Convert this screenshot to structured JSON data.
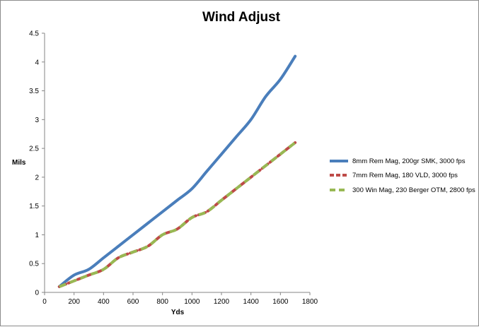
{
  "chart_data": {
    "type": "line",
    "title": "Wind Adjust",
    "xlabel": "Yds",
    "ylabel": "Mils",
    "xlim": [
      0,
      1800
    ],
    "ylim": [
      0,
      4.5
    ],
    "x_ticks": [
      "0",
      "200",
      "400",
      "600",
      "800",
      "1000",
      "1200",
      "1400",
      "1600",
      "1800"
    ],
    "y_ticks": [
      "0",
      "0.5",
      "1",
      "1.5",
      "2",
      "2.5",
      "3",
      "3.5",
      "4",
      "4.5"
    ],
    "grid": false,
    "legend_position": "right",
    "x": [
      100,
      200,
      300,
      400,
      500,
      600,
      700,
      800,
      900,
      1000,
      1100,
      1200,
      1300,
      1400,
      1500,
      1600,
      1700
    ],
    "series": [
      {
        "name": "8mm Rem Mag, 200gr SMK, 3000 fps",
        "color": "#4a7ebb",
        "style": "solid",
        "values": [
          0.1,
          0.3,
          0.4,
          0.6,
          0.8,
          1.0,
          1.2,
          1.4,
          1.6,
          1.8,
          2.1,
          2.4,
          2.7,
          3.0,
          3.4,
          3.7,
          4.1
        ]
      },
      {
        "name": "7mm Rem Mag, 180 VLD, 3000 fps",
        "color": "#be4b48",
        "style": "dashed",
        "values": [
          0.1,
          0.2,
          0.3,
          0.4,
          0.6,
          0.7,
          0.8,
          1.0,
          1.1,
          1.3,
          1.4,
          1.6,
          1.8,
          2.0,
          2.2,
          2.4,
          2.6
        ]
      },
      {
        "name": "300 Win Mag, 230 Berger OTM, 2800 fps",
        "color": "#98b954",
        "style": "dashed",
        "values": [
          0.1,
          0.2,
          0.3,
          0.4,
          0.6,
          0.7,
          0.8,
          1.0,
          1.1,
          1.3,
          1.4,
          1.6,
          1.8,
          2.0,
          2.2,
          2.4,
          2.6
        ]
      }
    ]
  }
}
